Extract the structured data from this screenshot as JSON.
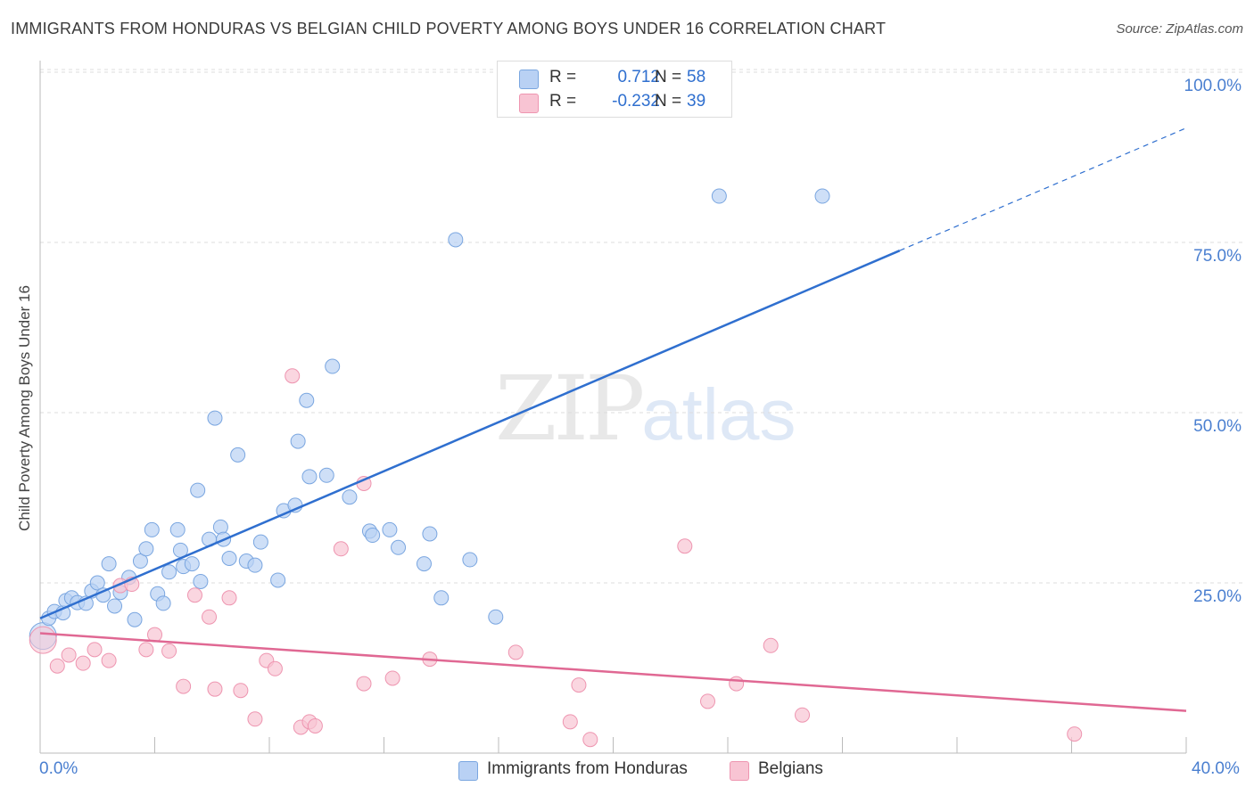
{
  "header": {
    "title": "IMMIGRANTS FROM HONDURAS VS BELGIAN CHILD POVERTY AMONG BOYS UNDER 16 CORRELATION CHART",
    "source": "Source: ZipAtlas.com"
  },
  "watermark": {
    "zip": "ZIP",
    "atlas": "atlas"
  },
  "legend": {
    "r_label": "R =",
    "n_label": "N =",
    "series": [
      {
        "name": "Immigrants from Honduras",
        "r": "0.712",
        "n": "58"
      },
      {
        "name": "Belgians",
        "r": "-0.232",
        "n": "39"
      }
    ]
  },
  "axes": {
    "ylabel": "Child Poverty Among Boys Under 16",
    "yticks": [
      "100.0%",
      "75.0%",
      "50.0%",
      "25.0%"
    ],
    "xticks": [
      "0.0%",
      "40.0%"
    ]
  },
  "colors": {
    "blue_fill": "#b9d1f4",
    "blue_stroke": "#7aa6e0",
    "blue_line": "#2f6fcf",
    "pink_fill": "#f8c4d3",
    "pink_stroke": "#ee95b0",
    "pink_line": "#e06893",
    "grid": "#dddddd",
    "tick_label": "#4a7fd0"
  },
  "chart_data": {
    "type": "scatter",
    "title": "IMMIGRANTS FROM HONDURAS VS BELGIAN CHILD POVERTY AMONG BOYS UNDER 16 CORRELATION CHART",
    "xlabel": "",
    "ylabel": "Child Poverty Among Boys Under 16",
    "xlim": [
      0,
      40
    ],
    "ylim": [
      0,
      102
    ],
    "grid": true,
    "legend_position": "top-center",
    "series": [
      {
        "name": "Immigrants from Honduras",
        "r": 0.712,
        "n": 58,
        "trend": {
          "x": [
            0,
            30
          ],
          "y": [
            19.8,
            73.8
          ],
          "extended_to": [
            40,
            91.8
          ]
        },
        "points": [
          [
            0.1,
            17.2
          ],
          [
            0.3,
            19.8
          ],
          [
            0.5,
            20.8
          ],
          [
            0.8,
            20.6
          ],
          [
            0.9,
            22.4
          ],
          [
            1.1,
            22.8
          ],
          [
            1.3,
            22.1
          ],
          [
            1.6,
            22.0
          ],
          [
            1.8,
            23.8
          ],
          [
            2.0,
            25.0
          ],
          [
            2.2,
            23.2
          ],
          [
            2.4,
            27.8
          ],
          [
            2.6,
            21.6
          ],
          [
            2.8,
            23.6
          ],
          [
            3.1,
            25.8
          ],
          [
            3.3,
            19.6
          ],
          [
            3.5,
            28.2
          ],
          [
            3.7,
            30.0
          ],
          [
            3.9,
            32.8
          ],
          [
            4.1,
            23.4
          ],
          [
            4.3,
            22.0
          ],
          [
            4.5,
            26.6
          ],
          [
            4.8,
            32.8
          ],
          [
            4.9,
            29.8
          ],
          [
            5.0,
            27.4
          ],
          [
            5.3,
            27.8
          ],
          [
            5.6,
            25.2
          ],
          [
            5.5,
            38.6
          ],
          [
            5.9,
            31.4
          ],
          [
            6.1,
            49.2
          ],
          [
            6.3,
            33.2
          ],
          [
            6.4,
            31.4
          ],
          [
            6.6,
            28.6
          ],
          [
            6.9,
            43.8
          ],
          [
            7.2,
            28.2
          ],
          [
            7.5,
            27.6
          ],
          [
            7.7,
            31.0
          ],
          [
            8.3,
            25.4
          ],
          [
            8.5,
            35.6
          ],
          [
            8.9,
            36.4
          ],
          [
            9.0,
            45.8
          ],
          [
            9.3,
            51.8
          ],
          [
            9.4,
            40.6
          ],
          [
            10.0,
            40.8
          ],
          [
            10.2,
            56.8
          ],
          [
            10.8,
            37.6
          ],
          [
            11.5,
            32.6
          ],
          [
            11.6,
            32.0
          ],
          [
            12.2,
            32.8
          ],
          [
            12.5,
            30.2
          ],
          [
            13.4,
            27.8
          ],
          [
            13.6,
            32.2
          ],
          [
            14.0,
            22.8
          ],
          [
            14.5,
            75.4
          ],
          [
            15.0,
            28.4
          ],
          [
            15.9,
            20.0
          ],
          [
            23.7,
            81.8
          ],
          [
            27.3,
            81.8
          ]
        ]
      },
      {
        "name": "Belgians",
        "r": -0.232,
        "n": 39,
        "trend": {
          "x": [
            0,
            40
          ],
          "y": [
            17.6,
            6.2
          ]
        },
        "points": [
          [
            0.1,
            16.6
          ],
          [
            0.6,
            12.8
          ],
          [
            1.0,
            14.4
          ],
          [
            1.5,
            13.2
          ],
          [
            1.9,
            15.2
          ],
          [
            2.4,
            13.6
          ],
          [
            2.8,
            24.6
          ],
          [
            3.2,
            24.8
          ],
          [
            3.7,
            15.2
          ],
          [
            4.0,
            17.4
          ],
          [
            4.5,
            15.0
          ],
          [
            5.0,
            9.8
          ],
          [
            5.4,
            23.2
          ],
          [
            5.9,
            20.0
          ],
          [
            6.1,
            9.4
          ],
          [
            6.6,
            22.8
          ],
          [
            7.0,
            9.2
          ],
          [
            7.5,
            5.0
          ],
          [
            7.9,
            13.6
          ],
          [
            8.2,
            12.4
          ],
          [
            8.8,
            55.4
          ],
          [
            9.1,
            3.8
          ],
          [
            9.4,
            4.6
          ],
          [
            9.6,
            4.0
          ],
          [
            10.5,
            30.0
          ],
          [
            11.3,
            39.6
          ],
          [
            11.3,
            10.2
          ],
          [
            12.3,
            11.0
          ],
          [
            13.6,
            13.8
          ],
          [
            16.6,
            14.8
          ],
          [
            18.5,
            4.6
          ],
          [
            18.8,
            10.0
          ],
          [
            19.2,
            2.0
          ],
          [
            22.5,
            30.4
          ],
          [
            23.3,
            7.6
          ],
          [
            24.3,
            10.2
          ],
          [
            25.5,
            15.8
          ],
          [
            26.6,
            5.6
          ],
          [
            36.1,
            2.8
          ]
        ]
      }
    ]
  }
}
